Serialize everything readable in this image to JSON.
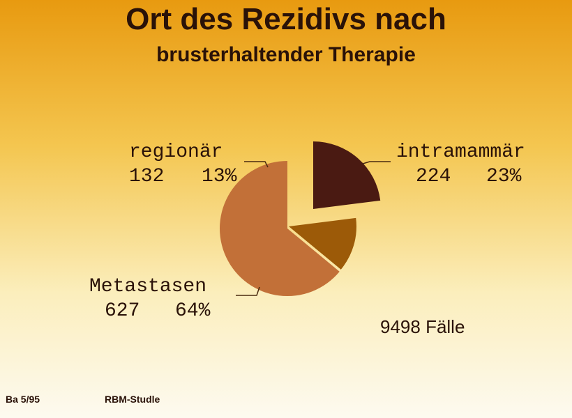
{
  "chart_data": {
    "type": "pie",
    "title": "Ort des Rezidivs nach",
    "subtitle": "brusterhaltender Therapie",
    "categories": [
      "intramammär",
      "regionär",
      "Metastasen"
    ],
    "counts": [
      224,
      132,
      627
    ],
    "values": [
      23,
      13,
      64
    ],
    "value_labels": [
      "23%",
      "13%",
      "64%"
    ],
    "colors": [
      "#4a1a12",
      "#9c5a08",
      "#c27038"
    ],
    "annotation": "9498 Fälle",
    "footer_left": "Ba 5/95",
    "footer_right": "RBM-Studle"
  }
}
